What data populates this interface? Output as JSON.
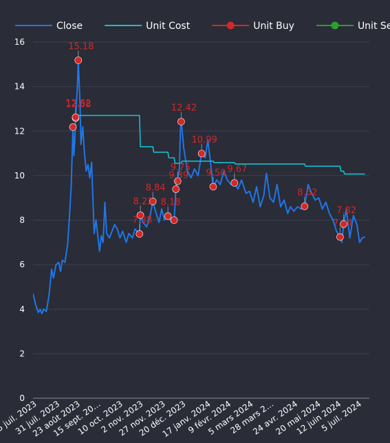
{
  "chart_data": {
    "type": "line",
    "title": "",
    "xlabel": "",
    "ylabel": "",
    "ylim": [
      0,
      16
    ],
    "yticks": [
      "0",
      "2",
      "4",
      "6",
      "8",
      "10",
      "12",
      "14",
      "16"
    ],
    "grid": true,
    "legend_position": "top-left",
    "xlim": [
      "2023-07-05",
      "2024-07-18"
    ],
    "x_ticks": [
      {
        "date": "2023-07-05",
        "label": "5 juil. 2023"
      },
      {
        "date": "2023-07-31",
        "label": "31 juil. 2023"
      },
      {
        "date": "2023-08-23",
        "label": "23 août 2023"
      },
      {
        "date": "2023-09-15",
        "label": "15 sept. 20…"
      },
      {
        "date": "2023-10-10",
        "label": "10 oct. 2023"
      },
      {
        "date": "2023-11-02",
        "label": "2 nov. 2023"
      },
      {
        "date": "2023-11-27",
        "label": "27 nov. 2023"
      },
      {
        "date": "2023-12-20",
        "label": "20 déc. 2023"
      },
      {
        "date": "2024-01-17",
        "label": "17 janv. 2024"
      },
      {
        "date": "2024-02-09",
        "label": "9 févr. 2024"
      },
      {
        "date": "2024-03-05",
        "label": "5 mars 2024"
      },
      {
        "date": "2024-03-28",
        "label": "28 mars 2…"
      },
      {
        "date": "2024-04-24",
        "label": "24 avr. 2024"
      },
      {
        "date": "2024-05-20",
        "label": "20 mai 2024"
      },
      {
        "date": "2024-06-12",
        "label": "12 juin 2024"
      },
      {
        "date": "2024-07-05",
        "label": "5 juil. 2024"
      }
    ],
    "series": [
      {
        "name": "Close",
        "color": "#1f77e8",
        "type": "line",
        "points": [
          [
            "2023-07-05",
            4.7
          ],
          [
            "2023-07-08",
            4.2
          ],
          [
            "2023-07-11",
            3.85
          ],
          [
            "2023-07-13",
            4.0
          ],
          [
            "2023-07-15",
            3.8
          ],
          [
            "2023-07-17",
            4.0
          ],
          [
            "2023-07-20",
            3.9
          ],
          [
            "2023-07-23",
            4.6
          ],
          [
            "2023-07-26",
            5.8
          ],
          [
            "2023-07-28",
            5.4
          ],
          [
            "2023-07-31",
            6.0
          ],
          [
            "2023-08-03",
            6.1
          ],
          [
            "2023-08-05",
            5.7
          ],
          [
            "2023-08-07",
            6.2
          ],
          [
            "2023-08-10",
            6.1
          ],
          [
            "2023-08-13",
            6.9
          ],
          [
            "2023-08-15",
            8.1
          ],
          [
            "2023-08-17",
            9.5
          ],
          [
            "2023-08-19",
            12.2
          ],
          [
            "2023-08-20",
            10.9
          ],
          [
            "2023-08-21",
            11.5
          ],
          [
            "2023-08-22",
            12.6
          ],
          [
            "2023-08-24",
            14.0
          ],
          [
            "2023-08-25",
            15.18
          ],
          [
            "2023-08-27",
            13.2
          ],
          [
            "2023-08-28",
            11.4
          ],
          [
            "2023-08-30",
            12.2
          ],
          [
            "2023-09-01",
            11.0
          ],
          [
            "2023-09-03",
            10.2
          ],
          [
            "2023-09-05",
            10.5
          ],
          [
            "2023-09-07",
            9.9
          ],
          [
            "2023-09-09",
            10.6
          ],
          [
            "2023-09-11",
            8.4
          ],
          [
            "2023-09-12",
            7.4
          ],
          [
            "2023-09-14",
            8.0
          ],
          [
            "2023-09-16",
            7.3
          ],
          [
            "2023-09-18",
            6.6
          ],
          [
            "2023-09-20",
            7.3
          ],
          [
            "2023-09-22",
            7.0
          ],
          [
            "2023-09-24",
            8.8
          ],
          [
            "2023-09-26",
            7.4
          ],
          [
            "2023-09-29",
            7.2
          ],
          [
            "2023-10-02",
            7.5
          ],
          [
            "2023-10-05",
            7.8
          ],
          [
            "2023-10-08",
            7.6
          ],
          [
            "2023-10-11",
            7.2
          ],
          [
            "2023-10-14",
            7.5
          ],
          [
            "2023-10-18",
            7.0
          ],
          [
            "2023-10-21",
            7.4
          ],
          [
            "2023-10-25",
            7.2
          ],
          [
            "2023-10-28",
            7.6
          ],
          [
            "2023-11-02",
            7.38
          ],
          [
            "2023-11-03",
            8.22
          ],
          [
            "2023-11-06",
            7.9
          ],
          [
            "2023-11-10",
            7.7
          ],
          [
            "2023-11-14",
            8.2
          ],
          [
            "2023-11-17",
            8.84
          ],
          [
            "2023-11-20",
            8.4
          ],
          [
            "2023-11-24",
            7.9
          ],
          [
            "2023-11-27",
            8.5
          ],
          [
            "2023-11-30",
            8.0
          ],
          [
            "2023-12-04",
            8.18
          ],
          [
            "2023-12-08",
            7.9
          ],
          [
            "2023-12-11",
            8.0
          ],
          [
            "2023-12-13",
            9.39
          ],
          [
            "2023-12-15",
            9.75
          ],
          [
            "2023-12-17",
            10.3
          ],
          [
            "2023-12-18",
            12.0
          ],
          [
            "2023-12-19",
            12.42
          ],
          [
            "2023-12-22",
            11.2
          ],
          [
            "2023-12-26",
            10.2
          ],
          [
            "2023-12-30",
            9.9
          ],
          [
            "2024-01-03",
            10.3
          ],
          [
            "2024-01-07",
            10.0
          ],
          [
            "2024-01-11",
            10.99
          ],
          [
            "2024-01-15",
            10.8
          ],
          [
            "2024-01-18",
            11.6
          ],
          [
            "2024-01-21",
            10.6
          ],
          [
            "2024-01-24",
            9.5
          ],
          [
            "2024-01-28",
            9.8
          ],
          [
            "2024-02-01",
            9.6
          ],
          [
            "2024-02-05",
            10.2
          ],
          [
            "2024-02-09",
            9.8
          ],
          [
            "2024-02-13",
            9.6
          ],
          [
            "2024-02-17",
            9.67
          ],
          [
            "2024-02-21",
            9.4
          ],
          [
            "2024-02-25",
            9.8
          ],
          [
            "2024-03-01",
            9.2
          ],
          [
            "2024-03-05",
            9.3
          ],
          [
            "2024-03-09",
            8.8
          ],
          [
            "2024-03-13",
            9.5
          ],
          [
            "2024-03-17",
            8.6
          ],
          [
            "2024-03-21",
            9.1
          ],
          [
            "2024-03-24",
            10.1
          ],
          [
            "2024-03-28",
            9.0
          ],
          [
            "2024-04-01",
            8.8
          ],
          [
            "2024-04-05",
            9.6
          ],
          [
            "2024-04-09",
            8.6
          ],
          [
            "2024-04-13",
            8.9
          ],
          [
            "2024-04-17",
            8.3
          ],
          [
            "2024-04-20",
            8.6
          ],
          [
            "2024-04-24",
            8.4
          ],
          [
            "2024-04-28",
            8.6
          ],
          [
            "2024-05-02",
            8.5
          ],
          [
            "2024-05-06",
            8.62
          ],
          [
            "2024-05-10",
            9.6
          ],
          [
            "2024-05-14",
            9.2
          ],
          [
            "2024-05-18",
            8.9
          ],
          [
            "2024-05-22",
            9.0
          ],
          [
            "2024-05-26",
            8.5
          ],
          [
            "2024-05-30",
            8.8
          ],
          [
            "2024-06-03",
            8.3
          ],
          [
            "2024-06-07",
            8.0
          ],
          [
            "2024-06-11",
            7.5
          ],
          [
            "2024-06-15",
            7.24
          ],
          [
            "2024-06-17",
            7.0
          ],
          [
            "2024-06-19",
            7.82
          ],
          [
            "2024-06-22",
            8.5
          ],
          [
            "2024-06-26",
            7.2
          ],
          [
            "2024-06-30",
            8.2
          ],
          [
            "2024-07-04",
            7.8
          ],
          [
            "2024-07-07",
            7.0
          ],
          [
            "2024-07-10",
            7.2
          ],
          [
            "2024-07-13",
            7.25
          ]
        ]
      },
      {
        "name": "Unit Cost",
        "color": "#17becf",
        "type": "step",
        "points": [
          [
            "2023-08-22",
            12.6
          ],
          [
            "2023-08-24",
            12.7
          ],
          [
            "2023-11-02",
            12.7
          ],
          [
            "2023-11-03",
            11.3
          ],
          [
            "2023-11-17",
            11.3
          ],
          [
            "2023-11-18",
            11.05
          ],
          [
            "2023-12-04",
            11.05
          ],
          [
            "2023-12-05",
            10.8
          ],
          [
            "2023-12-11",
            10.8
          ],
          [
            "2023-12-12",
            10.55
          ],
          [
            "2023-12-19",
            10.55
          ],
          [
            "2023-12-20",
            10.65
          ],
          [
            "2024-01-24",
            10.65
          ],
          [
            "2024-01-25",
            10.58
          ],
          [
            "2024-02-17",
            10.58
          ],
          [
            "2024-02-18",
            10.52
          ],
          [
            "2024-05-06",
            10.52
          ],
          [
            "2024-05-07",
            10.42
          ],
          [
            "2024-06-15",
            10.42
          ],
          [
            "2024-06-16",
            10.2
          ],
          [
            "2024-06-19",
            10.2
          ],
          [
            "2024-06-20",
            10.07
          ],
          [
            "2024-07-13",
            10.07
          ]
        ]
      },
      {
        "name": "Unit Buy",
        "color": "#d62728",
        "type": "markers",
        "points": [
          {
            "date": "2023-08-19",
            "y": 12.18,
            "label": ""
          },
          {
            "date": "2023-08-22",
            "y": 12.58,
            "label": "12.58"
          },
          {
            "date": "2023-08-22",
            "y": 12.62,
            "label": "12.62"
          },
          {
            "date": "2023-08-25",
            "y": 15.18,
            "label": "15.18"
          },
          {
            "date": "2023-11-02",
            "y": 7.38,
            "label": "7.38"
          },
          {
            "date": "2023-11-03",
            "y": 8.22,
            "label": "8.22"
          },
          {
            "date": "2023-11-17",
            "y": 8.84,
            "label": "8.84"
          },
          {
            "date": "2023-12-04",
            "y": 8.18,
            "label": "8.18"
          },
          {
            "date": "2023-12-11",
            "y": 8.0,
            "label": ""
          },
          {
            "date": "2023-12-13",
            "y": 9.39,
            "label": "9.39"
          },
          {
            "date": "2023-12-15",
            "y": 9.75,
            "label": "9.75"
          },
          {
            "date": "2023-12-19",
            "y": 12.42,
            "label": "12.42"
          },
          {
            "date": "2024-01-11",
            "y": 10.99,
            "label": "10.99"
          },
          {
            "date": "2024-01-24",
            "y": 9.5,
            "label": "9.50"
          },
          {
            "date": "2024-02-17",
            "y": 9.67,
            "label": "9.67"
          },
          {
            "date": "2024-05-06",
            "y": 8.62,
            "label": "8.62"
          },
          {
            "date": "2024-06-15",
            "y": 7.24,
            "label": "7.24"
          },
          {
            "date": "2024-06-19",
            "y": 7.82,
            "label": "7.82"
          }
        ]
      },
      {
        "name": "Unit Sell",
        "color": "#2ca02c",
        "type": "markers",
        "points": []
      }
    ]
  }
}
